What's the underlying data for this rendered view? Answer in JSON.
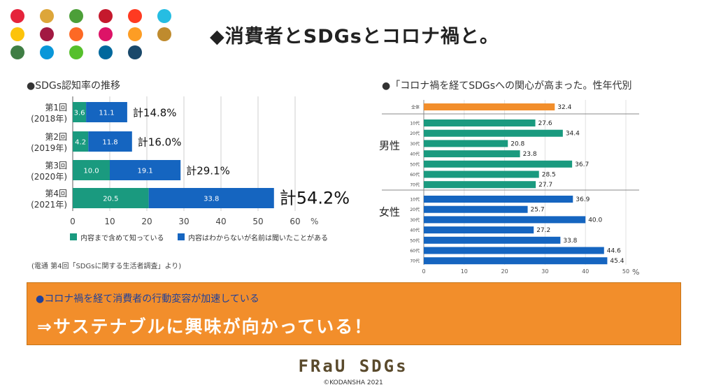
{
  "sdg_colors": [
    "#e5243b",
    "#dda63a",
    "#4c9f38",
    "#c5192d",
    "#ff3a21",
    "#26bde2",
    "#fcc30b",
    "#a21942",
    "#fd6925",
    "#dd1367",
    "#fd9d24",
    "#bf8b2e",
    "#3f7e44",
    "#0a97d9",
    "#56c02b",
    "#00689d",
    "#19486a"
  ],
  "slide_title": "◆消費者とSDGsとコロナ禍と。",
  "chart_data": [
    {
      "type": "bar",
      "orientation": "horizontal",
      "stacked": true,
      "title": "●SDGs認知率の推移",
      "categories": [
        "第1回",
        "第2回",
        "第3回",
        "第4回"
      ],
      "category_years": [
        "(2018年)",
        "(2019年)",
        "(2020年)",
        "(2021年)"
      ],
      "series": [
        {
          "name": "内容まで含めて知っている",
          "color": "#1a9a7f",
          "values": [
            3.6,
            4.2,
            10.0,
            20.5
          ]
        },
        {
          "name": "内容はわからないが名前は聞いたことがある",
          "color": "#1565c0",
          "values": [
            11.1,
            11.8,
            19.1,
            33.8
          ]
        }
      ],
      "totals": [
        "計14.8%",
        "計16.0%",
        "計29.1%",
        "計54.2%"
      ],
      "xlim": [
        0,
        60
      ],
      "xticks": [
        "0",
        "10",
        "20",
        "30",
        "40",
        "50",
        "60"
      ],
      "unit": "%",
      "source": "(電通 第4回「SDGsに関する生活者調査」より)"
    },
    {
      "type": "bar",
      "orientation": "horizontal",
      "title": "●「コロナ禍を経てSDGsへの関心が高まった。性年代別",
      "groups": [
        {
          "label": "",
          "color": "#f28e2b",
          "categories": [
            "全体"
          ],
          "values": [
            32.4
          ]
        },
        {
          "label": "男性",
          "color": "#1a9a7f",
          "categories": [
            "10代",
            "20代",
            "30代",
            "40代",
            "50代",
            "60代",
            "70代"
          ],
          "values": [
            27.6,
            34.4,
            20.8,
            23.8,
            36.7,
            28.5,
            27.7
          ]
        },
        {
          "label": "女性",
          "color": "#1565c0",
          "categories": [
            "10代",
            "20代",
            "30代",
            "40代",
            "50代",
            "60代",
            "70代"
          ],
          "values": [
            36.9,
            25.7,
            40.0,
            27.2,
            33.8,
            44.6,
            45.4
          ]
        }
      ],
      "xlim": [
        0,
        50
      ],
      "xticks": [
        "0",
        "10",
        "20",
        "30",
        "40",
        "50"
      ],
      "unit": "%"
    }
  ],
  "banner": {
    "line1": "●コロナ禍を経て消費者の行動変容が加速している",
    "line2": "⇒サステナブルに興味が向かっている！"
  },
  "logo_text": "FRaU SDGs",
  "copyright": "©KODANSHA 2021"
}
